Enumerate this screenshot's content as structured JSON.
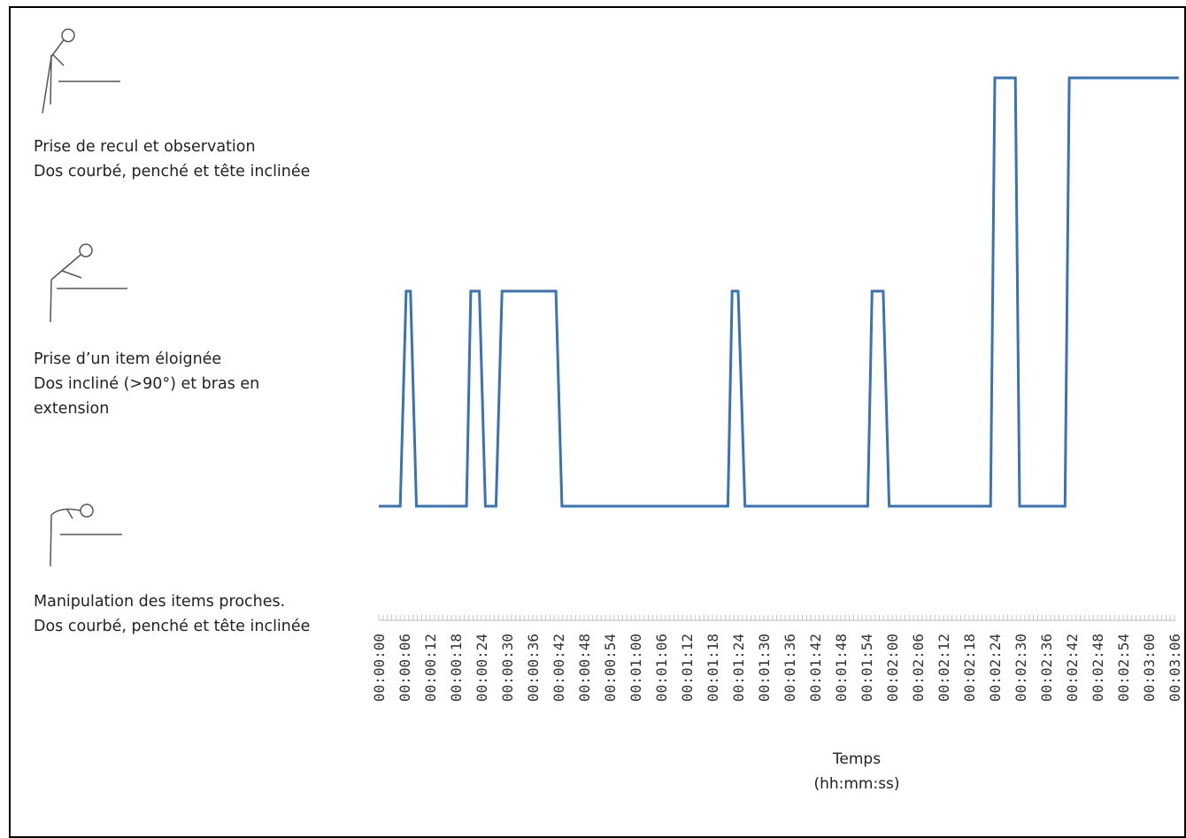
{
  "chart_data": {
    "type": "line",
    "xlabel": [
      "Temps",
      "(hh:mm:ss)"
    ],
    "x_ticks": [
      "00:00:00",
      "00:00:06",
      "00:00:12",
      "00:00:18",
      "00:00:24",
      "00:00:30",
      "00:00:36",
      "00:00:42",
      "00:00:48",
      "00:00:54",
      "00:01:00",
      "00:01:06",
      "00:01:12",
      "00:01:18",
      "00:01:24",
      "00:01:30",
      "00:01:36",
      "00:01:42",
      "00:01:48",
      "00:01:54",
      "00:02:00",
      "00:02:06",
      "00:02:12",
      "00:02:18",
      "00:02:24",
      "00:02:30",
      "00:02:36",
      "00:02:42",
      "00:02:48",
      "00:02:54",
      "00:03:00",
      "00:03:06"
    ],
    "y_categories": [
      {
        "lines": [
          "Manipulation des items proches.",
          "Dos courbé, penché et tête inclinée"
        ]
      },
      {
        "lines": [
          "Prise d’un item éloignée",
          "Dos incliné (>90°) et bras en",
          "extension"
        ]
      },
      {
        "lines": [
          "Prise de recul et observation",
          "Dos courbé, penché et tête inclinée"
        ]
      }
    ],
    "series": [
      {
        "color": "#3a73b4",
        "points": [
          [
            0,
            0
          ],
          [
            5,
            0
          ],
          [
            6.4,
            1
          ],
          [
            7.4,
            1
          ],
          [
            8.8,
            0
          ],
          [
            20.5,
            0
          ],
          [
            21.5,
            1
          ],
          [
            23.5,
            1
          ],
          [
            24.9,
            0
          ],
          [
            27.4,
            0
          ],
          [
            28.8,
            1
          ],
          [
            41.4,
            1
          ],
          [
            42.8,
            0
          ],
          [
            81.6,
            0
          ],
          [
            82.6,
            1
          ],
          [
            84,
            1
          ],
          [
            85.6,
            0
          ],
          [
            114.3,
            0
          ],
          [
            115.3,
            1
          ],
          [
            117.9,
            1
          ],
          [
            119.3,
            0
          ],
          [
            143,
            0
          ],
          [
            144,
            2
          ],
          [
            148.8,
            2
          ],
          [
            149.8,
            0
          ],
          [
            160.4,
            0
          ],
          [
            161.4,
            2
          ],
          [
            187,
            2
          ]
        ]
      }
    ],
    "grid": false,
    "legend": "none"
  }
}
